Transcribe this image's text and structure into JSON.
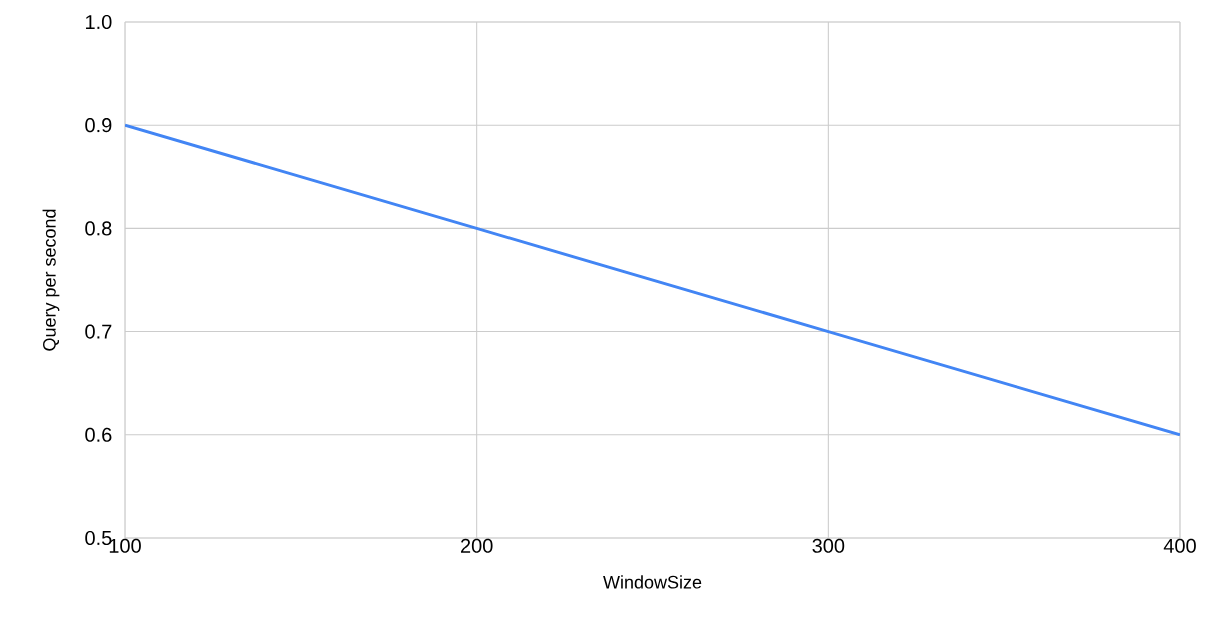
{
  "chart_data": {
    "type": "line",
    "xlabel": "WindowSize",
    "ylabel": "Query per second",
    "x": [
      100,
      200,
      300,
      400
    ],
    "series": [
      {
        "color": "#4285f4",
        "values": [
          0.9,
          0.8,
          0.7,
          0.6
        ]
      }
    ],
    "xlim": [
      100,
      400
    ],
    "ylim": [
      0.5,
      1.0
    ],
    "xticks": [
      100,
      200,
      300,
      400
    ],
    "yticks": [
      {
        "value": 0.5,
        "label": "0.5"
      },
      {
        "value": 0.6,
        "label": "0.6"
      },
      {
        "value": 0.7,
        "label": "0.7"
      },
      {
        "value": 0.8,
        "label": "0.8"
      },
      {
        "value": 0.9,
        "label": "0.9"
      },
      {
        "value": 1.0,
        "label": "1.0"
      }
    ],
    "grid": true,
    "marker": "none",
    "line_style": "solid"
  }
}
